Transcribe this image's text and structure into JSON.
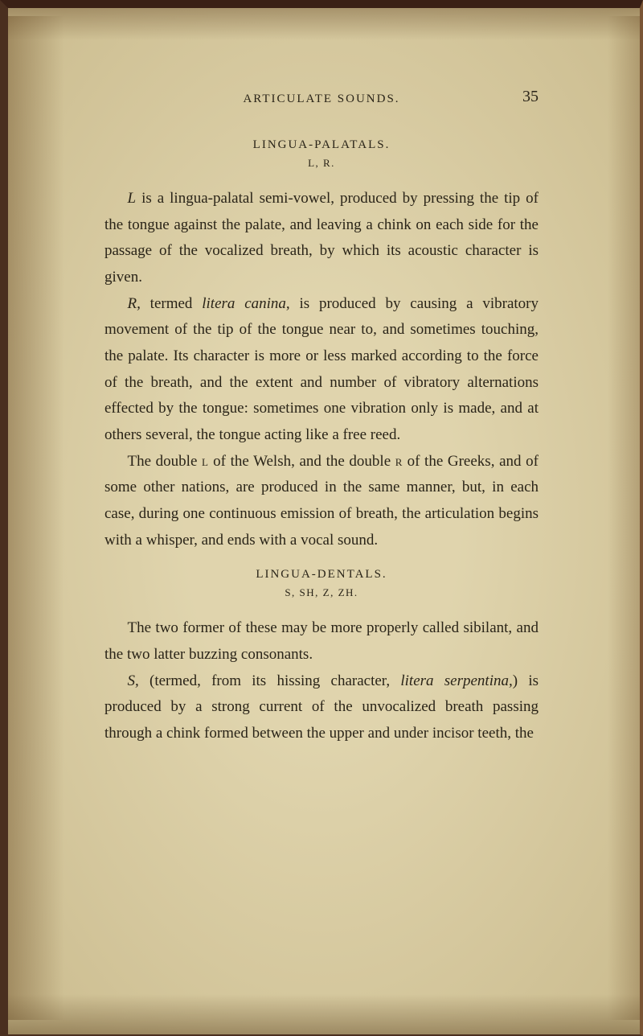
{
  "header": {
    "running_head": "ARTICULATE SOUNDS.",
    "page_number": "35"
  },
  "section1": {
    "title": "LINGUA-PALATALS.",
    "sub": "L, R.",
    "p1a": "L",
    "p1b": " is a lingua-palatal semi-vowel, produced by pressing the tip of the tongue against the palate, and leaving a chink on each side for the passage of the vocalized breath, by which its acoustic character is given.",
    "p2a": "R,",
    "p2b": " termed ",
    "p2c": "litera canina,",
    "p2d": " is produced by causing a vibratory movement of the tip of the tongue near to, and sometimes touching, the palate. Its character is more or less marked according to the force of the breath, and the extent and number of vibratory alternations effected by the tongue: sometimes one vibration only is made, and at others several, the tongue acting like a free reed.",
    "p3a": "The double ",
    "p3b": "l",
    "p3c": " of the Welsh, and the double ",
    "p3d": "r",
    "p3e": " of the Greeks, and of some other nations, are produced in the same manner, but, in each case, during one continuous emission of breath, the articulation begins with a whisper, and ends with a vocal sound."
  },
  "section2": {
    "title": "LINGUA-DENTALS.",
    "sub": "S, SH, Z, ZH.",
    "p1": "The two former of these may be more properly called sibilant, and the two latter buzzing consonants.",
    "p2a": "S,",
    "p2b": " (termed, from its hissing character, ",
    "p2c": "litera serpentina,",
    "p2d": ") is produced by a strong current of the unvocalized breath passing through a chink formed between the upper and under incisor teeth, the"
  }
}
